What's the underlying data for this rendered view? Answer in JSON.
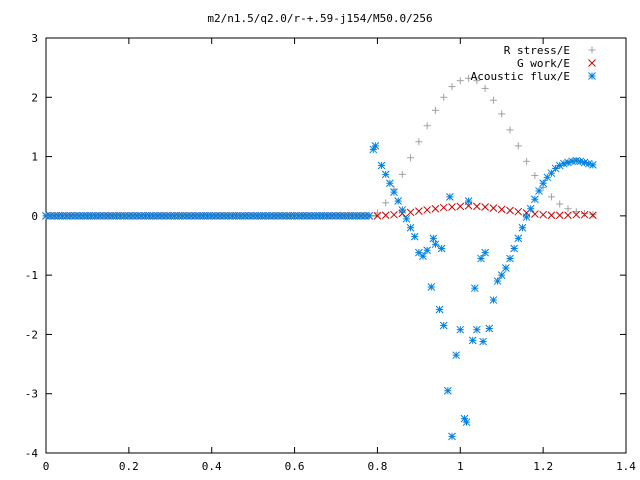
{
  "chart_data": {
    "type": "scatter",
    "title": "m2/n1.5/q2.0/r-+.59-j154/M50.0/256",
    "xlabel": "",
    "ylabel": "",
    "xlim": [
      0,
      1.4
    ],
    "ylim": [
      -4,
      3
    ],
    "xticks": [
      "0",
      "0.2",
      "0.4",
      "0.6",
      "0.8",
      "1",
      "1.2",
      "1.4"
    ],
    "yticks": [
      "3",
      "2",
      "1",
      "0",
      "-1",
      "-2",
      "-3",
      "-4"
    ],
    "xtick_values": [
      0,
      0.2,
      0.4,
      0.6,
      0.8,
      1.0,
      1.2,
      1.4
    ],
    "ytick_values": [
      3,
      2,
      1,
      0,
      -1,
      -2,
      -3,
      -4
    ],
    "grid": false,
    "legend_position": "top-right",
    "zero_line": {
      "from": 0,
      "to": 0.8,
      "y": 0,
      "color": "#00aa00"
    },
    "series": [
      {
        "name": "R stress/E",
        "marker": "plus",
        "color": "#a0a0a0",
        "x": [
          0.8,
          0.82,
          0.84,
          0.86,
          0.88,
          0.9,
          0.92,
          0.94,
          0.96,
          0.98,
          1.0,
          1.02,
          1.04,
          1.06,
          1.08,
          1.1,
          1.12,
          1.14,
          1.16,
          1.18,
          1.2,
          1.22,
          1.24,
          1.26,
          1.28,
          1.3,
          1.32
        ],
        "y": [
          0.05,
          0.22,
          0.45,
          0.7,
          0.98,
          1.25,
          1.52,
          1.78,
          2.0,
          2.18,
          2.28,
          2.32,
          2.28,
          2.15,
          1.95,
          1.72,
          1.45,
          1.18,
          0.92,
          0.68,
          0.48,
          0.32,
          0.2,
          0.12,
          0.07,
          0.04,
          0.02
        ]
      },
      {
        "name": "G work/E",
        "marker": "cross",
        "color": "#cc0000",
        "x": [
          0.8,
          0.82,
          0.84,
          0.86,
          0.88,
          0.9,
          0.92,
          0.94,
          0.96,
          0.98,
          1.0,
          1.02,
          1.04,
          1.06,
          1.08,
          1.1,
          1.12,
          1.14,
          1.16,
          1.18,
          1.2,
          1.22,
          1.24,
          1.26,
          1.28,
          1.3,
          1.32
        ],
        "y": [
          0.0,
          0.01,
          0.02,
          0.04,
          0.06,
          0.08,
          0.1,
          0.12,
          0.14,
          0.15,
          0.16,
          0.17,
          0.16,
          0.15,
          0.13,
          0.11,
          0.09,
          0.07,
          0.05,
          0.03,
          0.02,
          0.01,
          0.01,
          0.01,
          0.02,
          0.02,
          0.01
        ]
      },
      {
        "name": "Acoustic flux/E",
        "marker": "star",
        "color": "#0080e0",
        "x": [
          0.79,
          0.795,
          0.81,
          0.82,
          0.83,
          0.84,
          0.85,
          0.86,
          0.87,
          0.88,
          0.89,
          0.9,
          0.91,
          0.92,
          0.93,
          0.935,
          0.94,
          0.95,
          0.955,
          0.96,
          0.97,
          0.975,
          0.98,
          0.99,
          1.0,
          1.01,
          1.015,
          1.02,
          1.03,
          1.035,
          1.04,
          1.05,
          1.055,
          1.06,
          1.07,
          1.08,
          1.09,
          1.1,
          1.11,
          1.12,
          1.13,
          1.14,
          1.15,
          1.16,
          1.17,
          1.18,
          1.19,
          1.2,
          1.21,
          1.22,
          1.23,
          1.24,
          1.25,
          1.26,
          1.27,
          1.28,
          1.29,
          1.3,
          1.31,
          1.32
        ],
        "y": [
          1.12,
          1.18,
          0.85,
          0.7,
          0.55,
          0.4,
          0.25,
          0.1,
          -0.05,
          -0.2,
          -0.35,
          -0.62,
          -0.68,
          -0.58,
          -1.2,
          -0.38,
          -0.48,
          -1.58,
          -0.55,
          -1.85,
          -2.95,
          0.32,
          -3.72,
          -2.35,
          -1.92,
          -3.42,
          -3.48,
          0.25,
          -2.1,
          -1.22,
          -1.92,
          -0.72,
          -2.12,
          -0.62,
          -1.9,
          -1.42,
          -1.1,
          -1.0,
          -0.88,
          -0.72,
          -0.55,
          -0.38,
          -0.2,
          -0.02,
          0.12,
          0.28,
          0.42,
          0.55,
          0.65,
          0.72,
          0.8,
          0.85,
          0.88,
          0.9,
          0.92,
          0.93,
          0.92,
          0.9,
          0.88,
          0.86
        ]
      }
    ]
  }
}
